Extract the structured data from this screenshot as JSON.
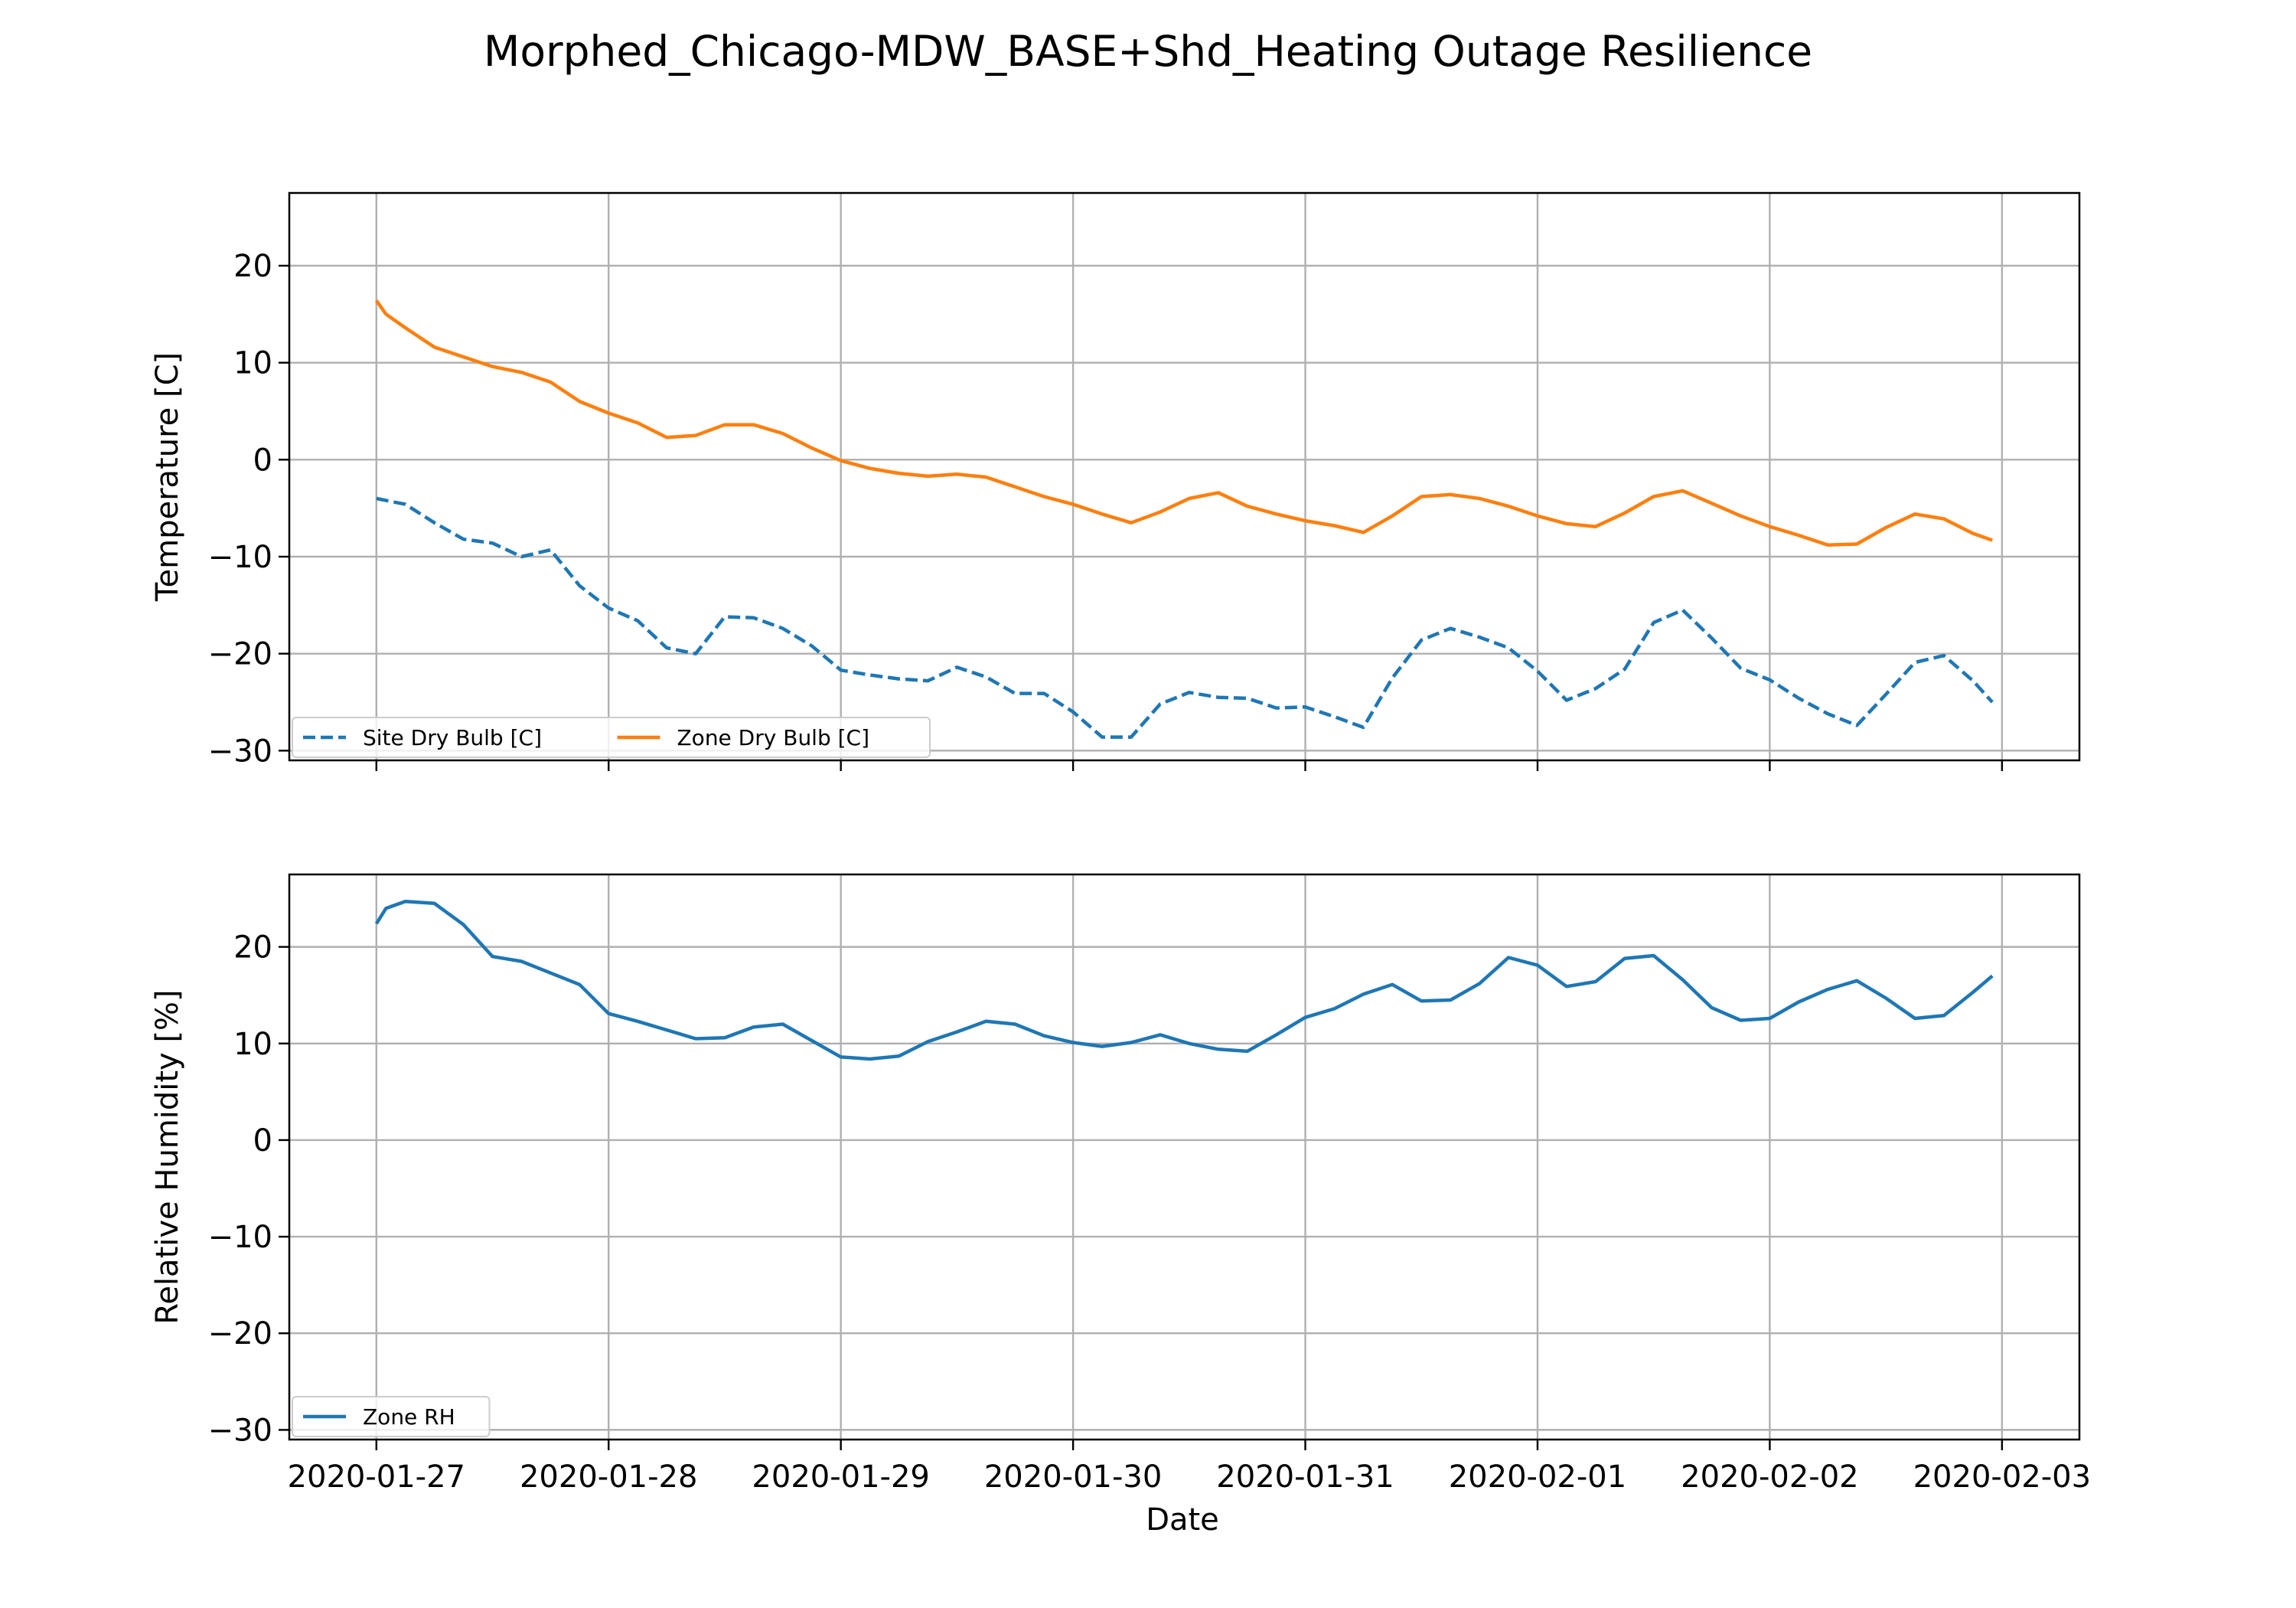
{
  "figure": {
    "title": "Morphed_Chicago-MDW_BASE+Shd_Heating Outage Resilience",
    "xlabel": "Date"
  },
  "chart_data": [
    {
      "type": "line",
      "ylabel": "Temperature [C]",
      "ylim": [
        -31,
        27.5
      ],
      "yticks": [
        -30,
        -20,
        -10,
        0,
        10,
        20
      ],
      "xlim": [
        "2020-01-26 15:00",
        "2020-02-03 08:00"
      ],
      "xticks": [
        "2020-01-27",
        "2020-01-28",
        "2020-01-29",
        "2020-01-30",
        "2020-01-31",
        "2020-02-01",
        "2020-02-02",
        "2020-02-03"
      ],
      "grid": true,
      "legend": "lower left, 2 columns",
      "series": [
        {
          "name": "Site Dry Bulb [C]",
          "color": "#1f77b4",
          "style": "dashed",
          "x": [
            "2020-01-27 00:00",
            "2020-01-27 03:00",
            "2020-01-27 06:00",
            "2020-01-27 09:00",
            "2020-01-27 12:00",
            "2020-01-27 15:00",
            "2020-01-27 18:00",
            "2020-01-27 21:00",
            "2020-01-28 00:00",
            "2020-01-28 03:00",
            "2020-01-28 06:00",
            "2020-01-28 09:00",
            "2020-01-28 12:00",
            "2020-01-28 15:00",
            "2020-01-28 18:00",
            "2020-01-28 21:00",
            "2020-01-29 00:00",
            "2020-01-29 03:00",
            "2020-01-29 06:00",
            "2020-01-29 09:00",
            "2020-01-29 12:00",
            "2020-01-29 15:00",
            "2020-01-29 18:00",
            "2020-01-29 21:00",
            "2020-01-30 00:00",
            "2020-01-30 03:00",
            "2020-01-30 06:00",
            "2020-01-30 09:00",
            "2020-01-30 12:00",
            "2020-01-30 15:00",
            "2020-01-30 18:00",
            "2020-01-30 21:00",
            "2020-01-31 00:00",
            "2020-01-31 03:00",
            "2020-01-31 06:00",
            "2020-01-31 09:00",
            "2020-01-31 12:00",
            "2020-01-31 15:00",
            "2020-01-31 18:00",
            "2020-01-31 21:00",
            "2020-02-01 00:00",
            "2020-02-01 03:00",
            "2020-02-01 06:00",
            "2020-02-01 09:00",
            "2020-02-01 12:00",
            "2020-02-01 15:00",
            "2020-02-01 18:00",
            "2020-02-01 21:00",
            "2020-02-02 00:00",
            "2020-02-02 03:00",
            "2020-02-02 06:00",
            "2020-02-02 09:00",
            "2020-02-02 12:00",
            "2020-02-02 15:00",
            "2020-02-02 18:00",
            "2020-02-02 21:00",
            "2020-02-02 23:00"
          ],
          "values": [
            -4,
            -4.6,
            -6.5,
            -8.2,
            -8.6,
            -10,
            -9.3,
            -13,
            -15.3,
            -16.6,
            -19.4,
            -20,
            -16.2,
            -16.3,
            -17.4,
            -19.2,
            -21.7,
            -22.2,
            -22.6,
            -22.8,
            -21.4,
            -22.4,
            -24.1,
            -24.1,
            -26,
            -28.6,
            -28.6,
            -25.2,
            -24,
            -24.5,
            -24.6,
            -25.6,
            -25.5,
            -26.5,
            -27.6,
            -22.5,
            -18.6,
            -17.4,
            -18.3,
            -19.4,
            -21.8,
            -24.8,
            -23.6,
            -21.6,
            -16.8,
            -15.5,
            -18.4,
            -21.5,
            -22.7,
            -24.6,
            -26.2,
            -27.4,
            -24.2,
            -20.9,
            -20.2,
            -22.8,
            -25
          ]
        },
        {
          "name": "Zone Dry Bulb [C]",
          "color": "#ff7f0e",
          "style": "solid",
          "x": [
            "2020-01-27 00:00",
            "2020-01-27 01:00",
            "2020-01-27 03:00",
            "2020-01-27 06:00",
            "2020-01-27 09:00",
            "2020-01-27 12:00",
            "2020-01-27 15:00",
            "2020-01-27 18:00",
            "2020-01-27 21:00",
            "2020-01-28 00:00",
            "2020-01-28 03:00",
            "2020-01-28 06:00",
            "2020-01-28 09:00",
            "2020-01-28 12:00",
            "2020-01-28 15:00",
            "2020-01-28 18:00",
            "2020-01-28 21:00",
            "2020-01-29 00:00",
            "2020-01-29 03:00",
            "2020-01-29 06:00",
            "2020-01-29 09:00",
            "2020-01-29 12:00",
            "2020-01-29 15:00",
            "2020-01-29 18:00",
            "2020-01-29 21:00",
            "2020-01-30 00:00",
            "2020-01-30 03:00",
            "2020-01-30 06:00",
            "2020-01-30 09:00",
            "2020-01-30 12:00",
            "2020-01-30 15:00",
            "2020-01-30 18:00",
            "2020-01-30 21:00",
            "2020-01-31 00:00",
            "2020-01-31 03:00",
            "2020-01-31 06:00",
            "2020-01-31 09:00",
            "2020-01-31 12:00",
            "2020-01-31 15:00",
            "2020-01-31 18:00",
            "2020-01-31 21:00",
            "2020-02-01 00:00",
            "2020-02-01 03:00",
            "2020-02-01 06:00",
            "2020-02-01 09:00",
            "2020-02-01 12:00",
            "2020-02-01 15:00",
            "2020-02-01 18:00",
            "2020-02-01 21:00",
            "2020-02-02 00:00",
            "2020-02-02 03:00",
            "2020-02-02 06:00",
            "2020-02-02 09:00",
            "2020-02-02 12:00",
            "2020-02-02 15:00",
            "2020-02-02 18:00",
            "2020-02-02 21:00",
            "2020-02-02 23:00"
          ],
          "values": [
            16.4,
            15,
            13.6,
            11.6,
            10.6,
            9.6,
            9,
            8,
            6,
            4.8,
            3.8,
            2.3,
            2.5,
            3.6,
            3.6,
            2.7,
            1.2,
            -0.1,
            -0.9,
            -1.4,
            -1.7,
            -1.5,
            -1.8,
            -2.8,
            -3.8,
            -4.6,
            -5.6,
            -6.5,
            -5.4,
            -4,
            -3.4,
            -4.8,
            -5.6,
            -6.3,
            -6.8,
            -7.5,
            -5.8,
            -3.8,
            -3.6,
            -4,
            -4.8,
            -5.8,
            -6.6,
            -6.9,
            -5.5,
            -3.8,
            -3.2,
            -4.5,
            -5.8,
            -6.9,
            -7.8,
            -8.8,
            -8.7,
            -7,
            -5.6,
            -6.1,
            -7.6,
            -8.3
          ]
        }
      ]
    },
    {
      "type": "line",
      "ylabel": "Relative Humidity [%]",
      "ylim": [
        -31,
        27.5
      ],
      "yticks": [
        -30,
        -20,
        -10,
        0,
        10,
        20
      ],
      "xlim": [
        "2020-01-26 15:00",
        "2020-02-03 08:00"
      ],
      "xticks": [
        "2020-01-27",
        "2020-01-28",
        "2020-01-29",
        "2020-01-30",
        "2020-01-31",
        "2020-02-01",
        "2020-02-02",
        "2020-02-03"
      ],
      "grid": true,
      "legend": "lower left",
      "series": [
        {
          "name": "Zone RH",
          "color": "#1f77b4",
          "style": "solid",
          "x": [
            "2020-01-27 00:00",
            "2020-01-27 01:00",
            "2020-01-27 03:00",
            "2020-01-27 06:00",
            "2020-01-27 09:00",
            "2020-01-27 12:00",
            "2020-01-27 15:00",
            "2020-01-27 18:00",
            "2020-01-27 21:00",
            "2020-01-28 00:00",
            "2020-01-28 03:00",
            "2020-01-28 06:00",
            "2020-01-28 09:00",
            "2020-01-28 12:00",
            "2020-01-28 15:00",
            "2020-01-28 18:00",
            "2020-01-28 21:00",
            "2020-01-29 00:00",
            "2020-01-29 03:00",
            "2020-01-29 06:00",
            "2020-01-29 09:00",
            "2020-01-29 12:00",
            "2020-01-29 15:00",
            "2020-01-29 18:00",
            "2020-01-29 21:00",
            "2020-01-30 00:00",
            "2020-01-30 03:00",
            "2020-01-30 06:00",
            "2020-01-30 09:00",
            "2020-01-30 12:00",
            "2020-01-30 15:00",
            "2020-01-30 18:00",
            "2020-01-30 21:00",
            "2020-01-31 00:00",
            "2020-01-31 03:00",
            "2020-01-31 06:00",
            "2020-01-31 09:00",
            "2020-01-31 12:00",
            "2020-01-31 15:00",
            "2020-01-31 18:00",
            "2020-01-31 21:00",
            "2020-02-01 00:00",
            "2020-02-01 03:00",
            "2020-02-01 06:00",
            "2020-02-01 09:00",
            "2020-02-01 12:00",
            "2020-02-01 15:00",
            "2020-02-01 18:00",
            "2020-02-01 21:00",
            "2020-02-02 00:00",
            "2020-02-02 03:00",
            "2020-02-02 06:00",
            "2020-02-02 09:00",
            "2020-02-02 12:00",
            "2020-02-02 15:00",
            "2020-02-02 18:00",
            "2020-02-02 21:00",
            "2020-02-02 23:00"
          ],
          "values": [
            22.4,
            24,
            24.7,
            24.5,
            22.3,
            19,
            18.5,
            17.3,
            16.1,
            13.1,
            12.3,
            11.4,
            10.5,
            10.6,
            11.7,
            12,
            10.3,
            8.6,
            8.4,
            8.7,
            10.2,
            11.2,
            12.3,
            12,
            10.8,
            10.1,
            9.7,
            10.1,
            10.9,
            10,
            9.4,
            9.2,
            10.9,
            12.7,
            13.6,
            15.1,
            16.1,
            14.4,
            14.5,
            16.2,
            18.9,
            18.1,
            15.9,
            16.4,
            18.8,
            19.1,
            16.6,
            13.7,
            12.4,
            12.6,
            14.3,
            15.6,
            16.5,
            14.7,
            12.6,
            12.9,
            15.3,
            17
          ]
        }
      ]
    }
  ]
}
